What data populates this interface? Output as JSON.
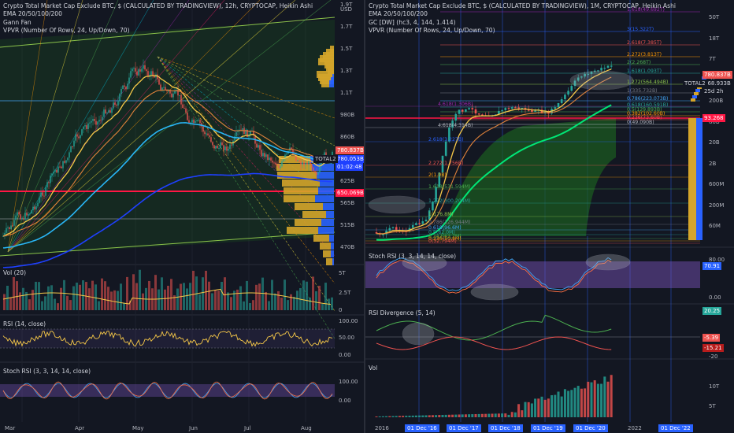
{
  "left": {
    "legend": [
      "Crypto Total Market Cap Exclude BTC, $ (CALCULATED BY TRADINGVIEW), 12h, CRYPTOCAP, Heikin Ashi",
      "EMA 20/50/100/200",
      "Gann Fan",
      "VPVR (Number Of Rows, 24, Up/Down, 70)"
    ],
    "price_axis": [
      "1.9T",
      "1.7T",
      "1.5T",
      "1.3T",
      "1.1T",
      "980B",
      "860B",
      "705B",
      "625B",
      "565B",
      "515B",
      "470B"
    ],
    "currency": "USD",
    "tags": {
      "p1": "780.837B",
      "p2": "780.053B",
      "timer": "01:02:48",
      "p3": "650.069B",
      "series": "TOTAL2"
    },
    "vol_title": "Vol (20)",
    "vol_axis": [
      "5T",
      "2.5T",
      "0"
    ],
    "rsi_title": "RSI (14, close)",
    "rsi_axis": [
      "100.00",
      "50.00",
      "0.00"
    ],
    "stoch_title": "Stoch RSI (3, 3, 14, 14, close)",
    "stoch_axis": [
      "100.00",
      "0.00"
    ],
    "time_axis": [
      "Mar",
      "Apr",
      "May",
      "Jun",
      "Jul",
      "Aug"
    ]
  },
  "right": {
    "legend": [
      "Crypto Total Market Cap Exclude BTC, $ (CALCULATED BY TRADINGVIEW), 1M, CRYPTOCAP, Heikin Ashi",
      "EMA 20/50/100/200",
      "GC [DW] (hc3, 4, 144, 1.414)",
      "VPVR (Number Of Rows, 24, Up/Down, 70)"
    ],
    "price_axis": [
      "50T",
      "18T",
      "7T",
      "2T",
      "200B",
      "80B",
      "20B",
      "2B",
      "600M",
      "200M",
      "60M"
    ],
    "currency": "USD",
    "tags": {
      "p1": "780.837B",
      "p2": "768.933B",
      "timer": "25d 2h",
      "p3": "93.268",
      "series": "TOTAL2"
    },
    "fib_labels": [
      "1.618(49.692T)",
      "3(15.322T)",
      "2.618(7.385T)",
      "2.272(3.813T)",
      "2(2.268T)",
      "1.618(1.093T)",
      "1.272(564.494B)",
      "1(335.732B)",
      "0.786(223.073B)",
      "0.618(160.591B)",
      "0.5(129.893B)",
      "0.382(102.60B)",
      "0.236(73.60B)",
      "0(49.090B)"
    ],
    "fib_lower": [
      "4.618(1.306B)",
      "2.618(3.227B)",
      "2.272(1.756B)",
      "2(1.0B)",
      "1.618(531.594M)",
      "1.272(300.204M)",
      "1(176.8M)",
      "0.786(126.944M)",
      "0.618(96.6M)",
      "0.5(82.0M)",
      "0.382(63.7M)",
      "0.236(50.8M)",
      "0(32.794M)",
      "4.618(4.314B)"
    ],
    "stoch_title": "Stoch RSI (3, 3, 14, 14, close)",
    "stoch_axis": [
      "80.00",
      "70.91",
      "0.00"
    ],
    "rsidiv_title": "RSI Divergence (5, 14)",
    "rsidiv_axis": [
      "20.25",
      "-5.39",
      "-15.21",
      "-20"
    ],
    "vol_title": "Vol",
    "vol_axis": [
      "10T",
      "5T"
    ],
    "time_axis": [
      "2016",
      "2022"
    ],
    "date_boxes": [
      "01 Dec '16",
      "01 Dec '17",
      "01 Dec '18",
      "01 Dec '19",
      "01 Dec '20",
      "01 Dec '22"
    ]
  },
  "colors": {
    "bg": "#131722",
    "grid": "#1e222d",
    "up": "#26a69a",
    "down": "#ef5350",
    "ema20": "#f7c948",
    "ema50": "#e0823b",
    "ema100": "#29b6f6",
    "ema200": "#1e40ff",
    "vpvr_up": "#2962ff",
    "vpvr_down": "#d4a52a",
    "red_line": "#ff1744"
  }
}
